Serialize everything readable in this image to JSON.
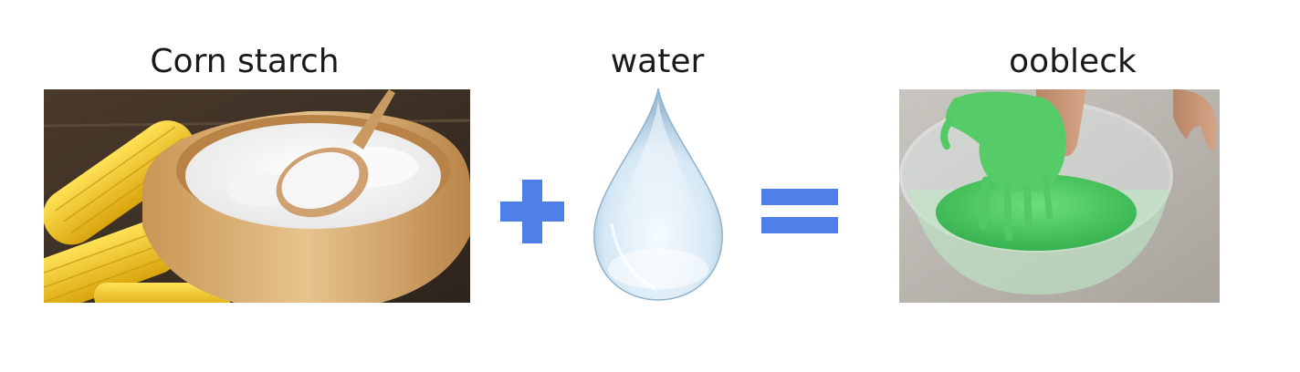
{
  "labels": {
    "cornstarch": "Corn starch",
    "water": "water",
    "oobleck": "oobleck"
  },
  "operators": {
    "plus": "+",
    "equals": "="
  },
  "colors": {
    "operator": "#4f7fe8",
    "oobleck_green": "#4ec865",
    "corn_yellow": "#f2c21b",
    "wood": "#d9ad73",
    "water_tint": "#cfe4f3"
  },
  "icons": {
    "cornstarch": "cornstarch-bowl-photo",
    "water": "water-drop-icon",
    "oobleck": "oobleck-bowl-photo"
  }
}
